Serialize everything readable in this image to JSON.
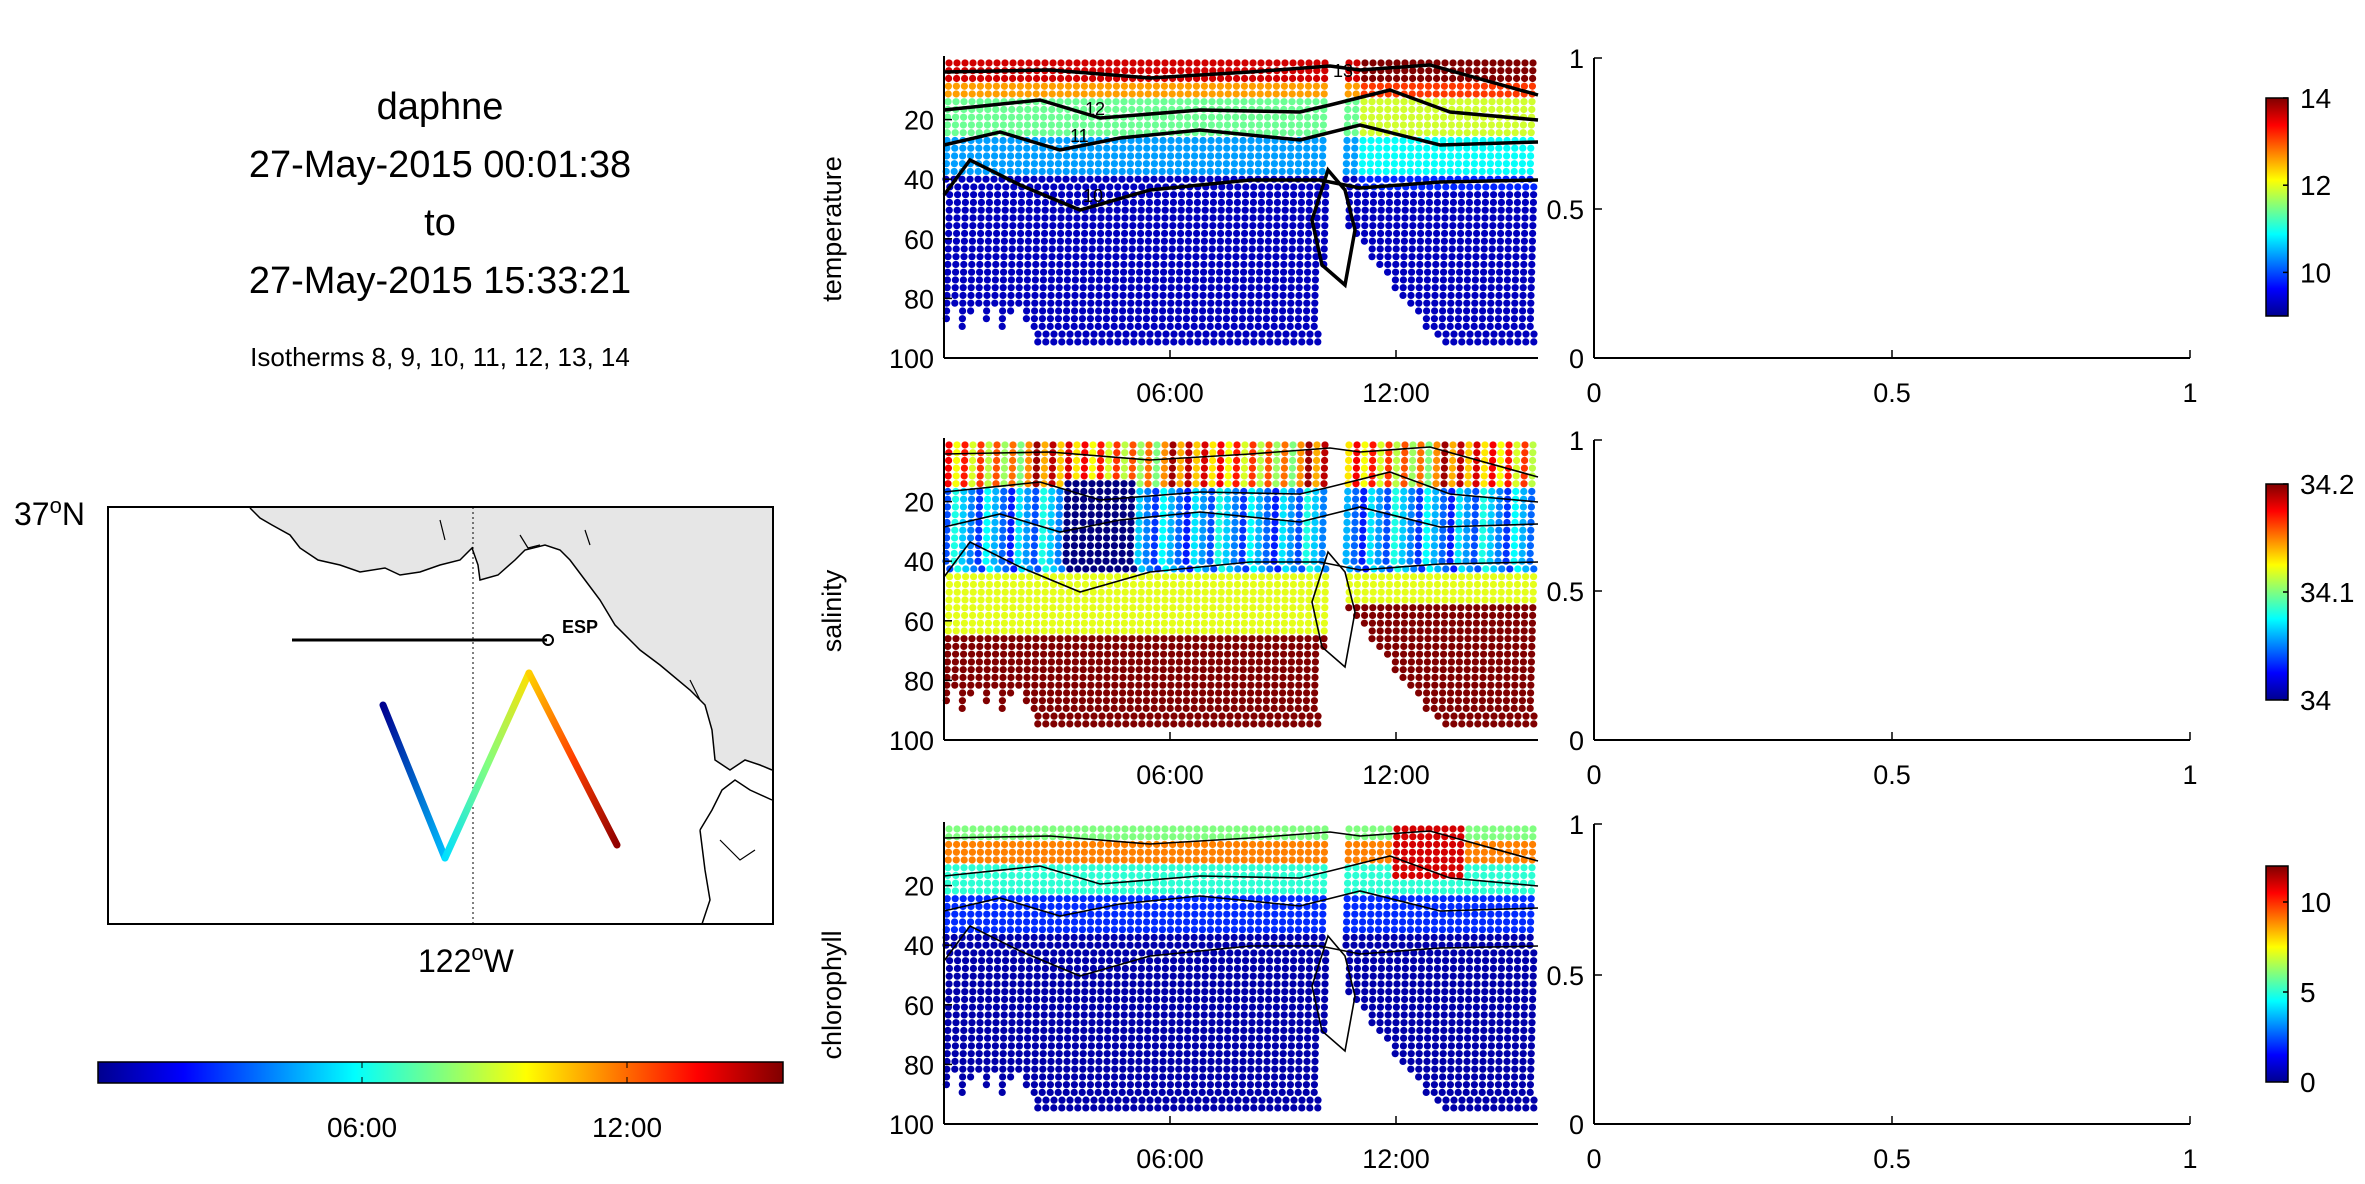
{
  "header": {
    "vehicle": "daphne",
    "start": "27-May-2015 00:01:38",
    "to": "to",
    "end": "27-May-2015 15:33:21",
    "isotherms": "Isotherms 8, 9, 10, 11, 12, 13, 14"
  },
  "map": {
    "lat_label": "37",
    "lat_suffix": "N",
    "lon_label": "122",
    "lon_suffix": "W",
    "station_label": "ESP",
    "land_color": "#e6e6e6",
    "track_points": [
      [
        0.41,
        0.47
      ],
      [
        0.53,
        0.86
      ],
      [
        0.63,
        0.35
      ],
      [
        0.77,
        0.86
      ]
    ]
  },
  "time_colorbar": {
    "ticks": [
      "06:00",
      "12:00"
    ]
  },
  "chart_data": [
    {
      "type": "scatter",
      "panel": "temperature",
      "ylabel": "temperature",
      "y_ticks": [
        "20",
        "40",
        "60",
        "80",
        "100"
      ],
      "x_ticks": [
        "06:00",
        "12:00"
      ],
      "ylim": [
        0,
        100
      ],
      "y_reversed": true,
      "colorbar": {
        "ticks": [
          "10",
          "12",
          "14"
        ],
        "range": [
          9,
          14
        ]
      },
      "contour_labels": [
        "13",
        "12",
        "11",
        "10"
      ],
      "aux_axis": {
        "x_ticks": [
          "0",
          "0.5",
          "1"
        ],
        "y_ticks": [
          "1",
          "0.5",
          "0"
        ]
      }
    },
    {
      "type": "scatter",
      "panel": "salinity",
      "ylabel": "salinity",
      "y_ticks": [
        "20",
        "40",
        "60",
        "80",
        "100"
      ],
      "x_ticks": [
        "06:00",
        "12:00"
      ],
      "ylim": [
        0,
        100
      ],
      "y_reversed": true,
      "colorbar": {
        "ticks": [
          "34",
          "34.1",
          "34.2"
        ],
        "range": [
          34,
          34.2
        ]
      },
      "aux_axis": {
        "x_ticks": [
          "0",
          "0.5",
          "1"
        ],
        "y_ticks": [
          "1",
          "0.5",
          "0"
        ]
      }
    },
    {
      "type": "scatter",
      "panel": "chlorophyll",
      "ylabel": "chlorophyll",
      "y_ticks": [
        "20",
        "40",
        "60",
        "80",
        "100"
      ],
      "x_ticks": [
        "06:00",
        "12:00"
      ],
      "ylim": [
        0,
        100
      ],
      "y_reversed": true,
      "colorbar": {
        "ticks": [
          "0",
          "5",
          "10"
        ],
        "range": [
          0,
          12
        ]
      },
      "aux_axis": {
        "x_ticks": [
          "0",
          "0.5",
          "1"
        ],
        "y_ticks": [
          "1",
          "0.5",
          "0"
        ]
      }
    }
  ]
}
